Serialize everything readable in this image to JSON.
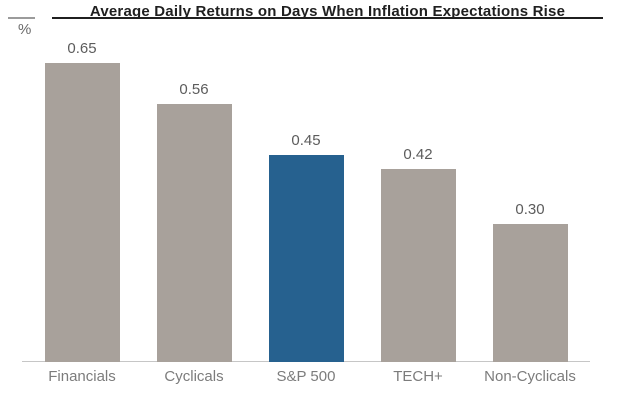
{
  "chart_data": {
    "type": "bar",
    "title": "Average Daily Returns on Days When Inflation Expectations Rise",
    "categories": [
      "Financials",
      "Cyclicals",
      "S&P 500",
      "TECH+",
      "Non-Cyclicals"
    ],
    "values": [
      0.65,
      0.56,
      0.45,
      0.42,
      0.3
    ],
    "value_labels": [
      "0.65",
      "0.56",
      "0.45",
      "0.42",
      "0.30"
    ],
    "xlabel": "",
    "ylabel": "%",
    "ylim": [
      0,
      0.72
    ],
    "grid": false,
    "legend": false,
    "highlighted_category": "S&P 500",
    "bar_colors": [
      "#a8a19b",
      "#a8a19b",
      "#26618f",
      "#a8a19b",
      "#a8a19b"
    ],
    "colors": {
      "default_bar": "#a8a19b",
      "highlight_bar": "#26618f",
      "axis_line": "#c6c6c6",
      "title_rule": "#1f1f1f",
      "unit_rule": "#9b9b9b"
    }
  }
}
